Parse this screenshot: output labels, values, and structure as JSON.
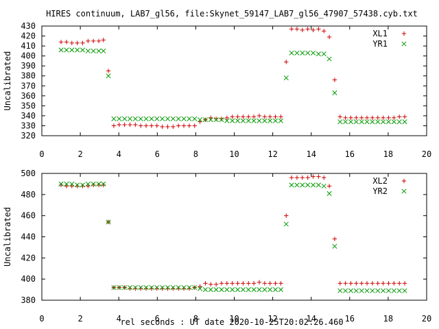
{
  "title": "HIRES continuum, LAB7_gl56, file:Skynet_59147_LAB7_gl56_47907_57438.cyb.txt",
  "xlabel": "rel seconds : UT date 2020-10-25T20:02:26.460",
  "colors": {
    "plus": "#cc0000",
    "cross": "#009900"
  },
  "chart_data": [
    {
      "type": "scatter",
      "ylabel": "Uncalibrated",
      "xlim": [
        0,
        20
      ],
      "ylim": [
        320,
        430
      ],
      "xticks": [
        0,
        2,
        4,
        6,
        8,
        10,
        12,
        14,
        16,
        18,
        20
      ],
      "yticks": [
        320,
        330,
        340,
        350,
        360,
        370,
        380,
        390,
        400,
        410,
        420,
        430
      ],
      "legend_position": "top-right",
      "grid": false,
      "series": [
        {
          "name": "XL1",
          "marker": "plus",
          "x": [
            1.0,
            1.28,
            1.56,
            1.84,
            2.12,
            2.4,
            2.68,
            2.96,
            3.2,
            3.46,
            3.74,
            4.02,
            4.3,
            4.58,
            4.86,
            5.14,
            5.42,
            5.7,
            5.98,
            6.26,
            6.54,
            6.82,
            7.1,
            7.38,
            7.66,
            7.94,
            8.22,
            8.5,
            8.78,
            9.06,
            9.34,
            9.62,
            9.9,
            10.18,
            10.46,
            10.74,
            11.02,
            11.3,
            11.58,
            11.86,
            12.14,
            12.42,
            12.7,
            12.98,
            13.26,
            13.54,
            13.82,
            14.1,
            14.38,
            14.66,
            14.94,
            15.22,
            15.5,
            15.78,
            16.06,
            16.34,
            16.62,
            16.9,
            17.18,
            17.46,
            17.74,
            18.02,
            18.3,
            18.58,
            18.86
          ],
          "y": [
            414,
            414,
            413,
            413,
            413,
            415,
            415,
            415,
            416,
            385,
            330,
            331,
            331,
            331,
            331,
            330,
            330,
            330,
            330,
            329,
            329,
            329,
            330,
            330,
            330,
            330,
            334,
            336,
            338,
            337,
            337,
            338,
            339,
            339,
            339,
            339,
            339,
            340,
            339,
            339,
            339,
            339,
            394,
            427,
            427,
            426,
            427,
            426,
            427,
            425,
            419,
            376,
            339,
            338,
            338,
            338,
            338,
            338,
            338,
            338,
            338,
            338,
            338,
            339,
            339
          ]
        },
        {
          "name": "YR1",
          "marker": "cross",
          "x": [
            1.0,
            1.28,
            1.56,
            1.84,
            2.12,
            2.4,
            2.68,
            2.96,
            3.2,
            3.46,
            3.74,
            4.02,
            4.3,
            4.58,
            4.86,
            5.14,
            5.42,
            5.7,
            5.98,
            6.26,
            6.54,
            6.82,
            7.1,
            7.38,
            7.66,
            7.94,
            8.22,
            8.5,
            8.78,
            9.06,
            9.34,
            9.62,
            9.9,
            10.18,
            10.46,
            10.74,
            11.02,
            11.3,
            11.58,
            11.86,
            12.14,
            12.42,
            12.7,
            12.98,
            13.26,
            13.54,
            13.82,
            14.1,
            14.38,
            14.66,
            14.94,
            15.22,
            15.5,
            15.78,
            16.06,
            16.34,
            16.62,
            16.9,
            17.18,
            17.46,
            17.74,
            18.02,
            18.3,
            18.58,
            18.86
          ],
          "y": [
            406,
            406,
            406,
            406,
            406,
            405,
            405,
            405,
            405,
            380,
            337,
            337,
            337,
            337,
            337,
            337,
            337,
            337,
            337,
            337,
            337,
            337,
            337,
            337,
            337,
            337,
            336,
            336,
            336,
            336,
            336,
            335,
            335,
            335,
            335,
            335,
            335,
            335,
            335,
            335,
            335,
            335,
            378,
            403,
            403,
            403,
            403,
            403,
            402,
            402,
            397,
            363,
            334,
            334,
            334,
            334,
            334,
            334,
            334,
            334,
            334,
            334,
            334,
            334,
            334
          ]
        }
      ]
    },
    {
      "type": "scatter",
      "ylabel": "Uncalibrated",
      "xlim": [
        0,
        20
      ],
      "ylim": [
        380,
        500
      ],
      "xticks": [
        0,
        2,
        4,
        6,
        8,
        10,
        12,
        14,
        16,
        18,
        20
      ],
      "yticks": [
        380,
        400,
        420,
        440,
        460,
        480,
        500
      ],
      "legend_position": "top-right",
      "grid": false,
      "series": [
        {
          "name": "XL2",
          "marker": "plus",
          "x": [
            1.0,
            1.28,
            1.56,
            1.84,
            2.12,
            2.4,
            2.68,
            2.96,
            3.2,
            3.46,
            3.74,
            4.02,
            4.3,
            4.58,
            4.86,
            5.14,
            5.42,
            5.7,
            5.98,
            6.26,
            6.54,
            6.82,
            7.1,
            7.38,
            7.66,
            7.94,
            8.22,
            8.5,
            8.78,
            9.06,
            9.34,
            9.62,
            9.9,
            10.18,
            10.46,
            10.74,
            11.02,
            11.3,
            11.58,
            11.86,
            12.14,
            12.42,
            12.7,
            12.98,
            13.26,
            13.54,
            13.82,
            14.1,
            14.38,
            14.66,
            14.94,
            15.22,
            15.5,
            15.78,
            16.06,
            16.34,
            16.62,
            16.9,
            17.18,
            17.46,
            17.74,
            18.02,
            18.3,
            18.58,
            18.86
          ],
          "y": [
            489,
            488,
            488,
            488,
            488,
            488,
            489,
            489,
            489,
            454,
            392,
            392,
            392,
            391,
            391,
            391,
            391,
            391,
            391,
            391,
            391,
            391,
            391,
            391,
            391,
            392,
            393,
            396,
            395,
            395,
            396,
            396,
            396,
            396,
            396,
            396,
            396,
            397,
            396,
            396,
            396,
            396,
            460,
            496,
            496,
            496,
            496,
            497,
            497,
            496,
            488,
            438,
            396,
            396,
            396,
            396,
            396,
            396,
            396,
            396,
            396,
            396,
            396,
            396,
            396
          ]
        },
        {
          "name": "YR2",
          "marker": "cross",
          "x": [
            1.0,
            1.28,
            1.56,
            1.84,
            2.12,
            2.4,
            2.68,
            2.96,
            3.2,
            3.46,
            3.74,
            4.02,
            4.3,
            4.58,
            4.86,
            5.14,
            5.42,
            5.7,
            5.98,
            6.26,
            6.54,
            6.82,
            7.1,
            7.38,
            7.66,
            7.94,
            8.22,
            8.5,
            8.78,
            9.06,
            9.34,
            9.62,
            9.9,
            10.18,
            10.46,
            10.74,
            11.02,
            11.3,
            11.58,
            11.86,
            12.14,
            12.42,
            12.7,
            12.98,
            13.26,
            13.54,
            13.82,
            14.1,
            14.38,
            14.66,
            14.94,
            15.22,
            15.5,
            15.78,
            16.06,
            16.34,
            16.62,
            16.9,
            17.18,
            17.46,
            17.74,
            18.02,
            18.3,
            18.58,
            18.86
          ],
          "y": [
            490,
            490,
            490,
            489,
            489,
            490,
            490,
            490,
            490,
            454,
            392,
            392,
            392,
            392,
            392,
            392,
            392,
            392,
            392,
            392,
            392,
            392,
            392,
            392,
            392,
            392,
            391,
            390,
            390,
            390,
            390,
            390,
            390,
            390,
            390,
            390,
            390,
            390,
            390,
            390,
            390,
            390,
            452,
            489,
            489,
            489,
            489,
            489,
            489,
            488,
            481,
            431,
            389,
            389,
            389,
            389,
            389,
            389,
            389,
            389,
            389,
            389,
            389,
            389,
            389
          ]
        }
      ]
    }
  ]
}
